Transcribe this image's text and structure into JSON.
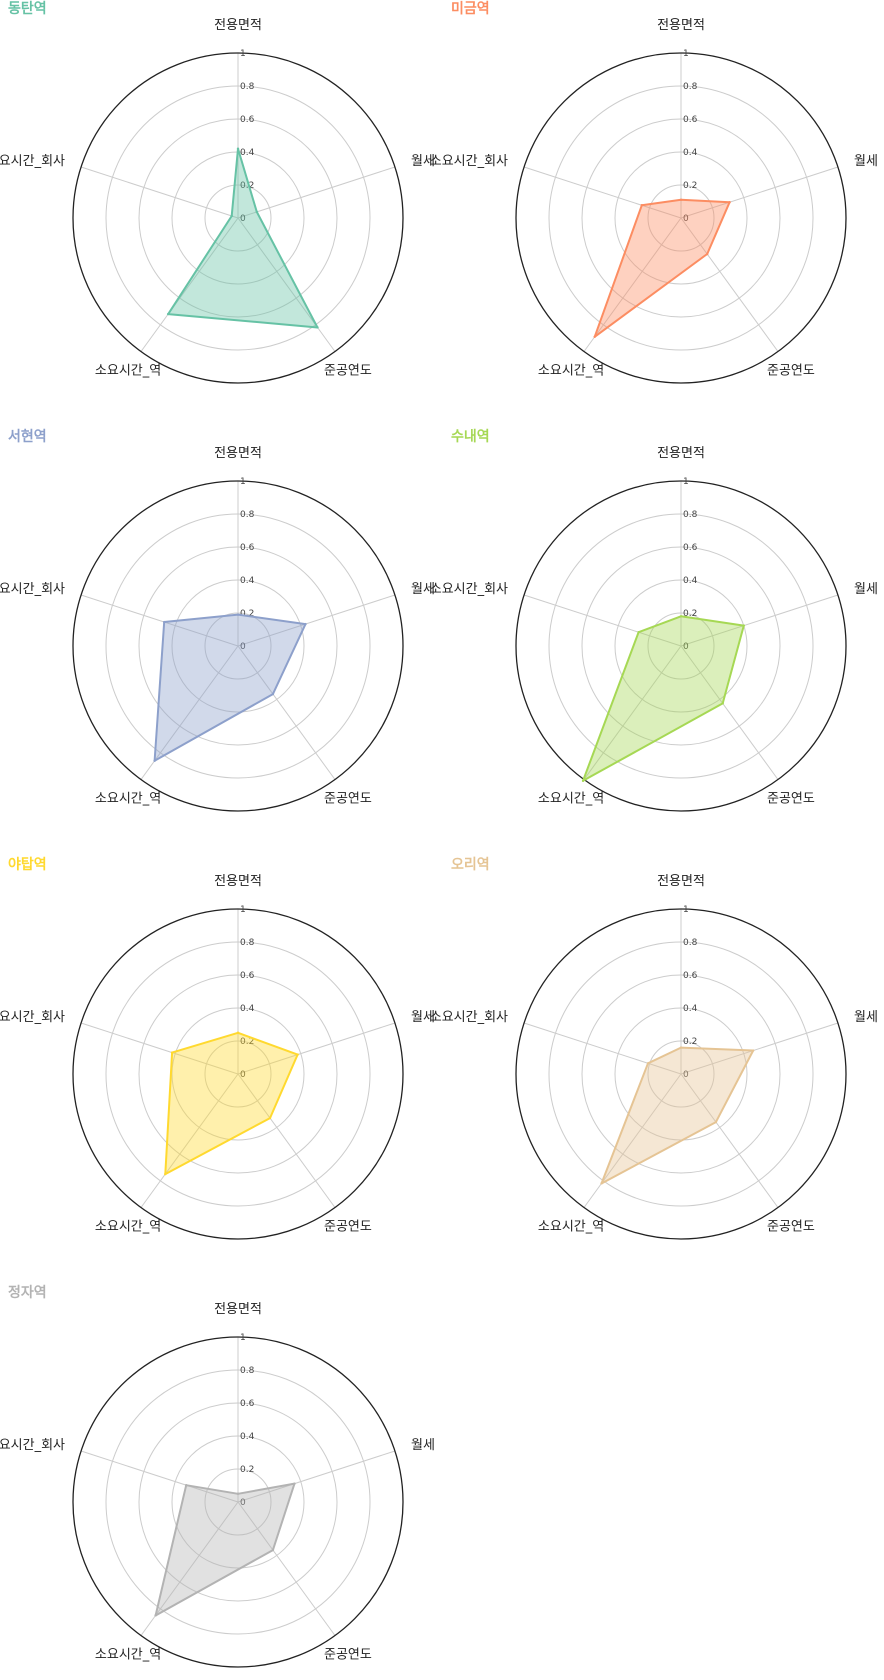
{
  "chart_data": [
    {
      "type": "radar",
      "title": "동탄역",
      "color": "#66c2a5",
      "axes": [
        "전용면적",
        "월세",
        "준공연도",
        "소요시간_역",
        "소요시간_회사"
      ],
      "values": [
        0.42,
        0.12,
        0.82,
        0.72,
        0.04
      ],
      "rlim": [
        0,
        1
      ],
      "ticks": [
        "0",
        "0.2",
        "0.4",
        "0.6",
        "0.8",
        "1"
      ]
    },
    {
      "type": "radar",
      "title": "미금역",
      "color": "#fc8d62",
      "axes": [
        "전용면적",
        "월세",
        "준공연도",
        "소요시간_역",
        "소요시간_회사"
      ],
      "values": [
        0.11,
        0.31,
        0.27,
        0.89,
        0.25
      ],
      "rlim": [
        0,
        1
      ],
      "ticks": [
        "0",
        "0.2",
        "0.4",
        "0.6",
        "0.8",
        "1"
      ]
    },
    {
      "type": "radar",
      "title": "서현역",
      "color": "#8da0cb",
      "axes": [
        "전용면적",
        "월세",
        "준공연도",
        "소요시간_역",
        "소요시간_회사"
      ],
      "values": [
        0.19,
        0.43,
        0.36,
        0.86,
        0.47
      ],
      "rlim": [
        0,
        1
      ],
      "ticks": [
        "0",
        "0.2",
        "0.4",
        "0.6",
        "0.8",
        "1"
      ]
    },
    {
      "type": "radar",
      "title": "수내역",
      "color": "#a6d854",
      "axes": [
        "전용면적",
        "월세",
        "준공연도",
        "소요시간_역",
        "소요시간_회사"
      ],
      "values": [
        0.18,
        0.4,
        0.43,
        1.01,
        0.27
      ],
      "rlim": [
        0,
        1
      ],
      "ticks": [
        "0",
        "0.2",
        "0.4",
        "0.6",
        "0.8",
        "1"
      ]
    },
    {
      "type": "radar",
      "title": "야탑역",
      "color": "#ffd92f",
      "axes": [
        "전용면적",
        "월세",
        "준공연도",
        "소요시간_역",
        "소요시간_회사"
      ],
      "values": [
        0.25,
        0.38,
        0.33,
        0.75,
        0.42
      ],
      "rlim": [
        0,
        1
      ],
      "ticks": [
        "0",
        "0.2",
        "0.4",
        "0.6",
        "0.8",
        "1"
      ]
    },
    {
      "type": "radar",
      "title": "오리역",
      "color": "#e5c494",
      "axes": [
        "전용면적",
        "월세",
        "준공연도",
        "소요시간_역",
        "소요시간_회사"
      ],
      "values": [
        0.16,
        0.46,
        0.36,
        0.82,
        0.21
      ],
      "rlim": [
        0,
        1
      ],
      "ticks": [
        "0",
        "0.2",
        "0.4",
        "0.6",
        "0.8",
        "1"
      ]
    },
    {
      "type": "radar",
      "title": "정자역",
      "color": "#b3b3b3",
      "axes": [
        "전용면적",
        "월세",
        "준공연도",
        "소요시간_역",
        "소요시간_회사"
      ],
      "values": [
        0.05,
        0.36,
        0.36,
        0.85,
        0.33
      ],
      "rlim": [
        0,
        1
      ],
      "ticks": [
        "0",
        "0.2",
        "0.4",
        "0.6",
        "0.8",
        "1"
      ]
    }
  ]
}
